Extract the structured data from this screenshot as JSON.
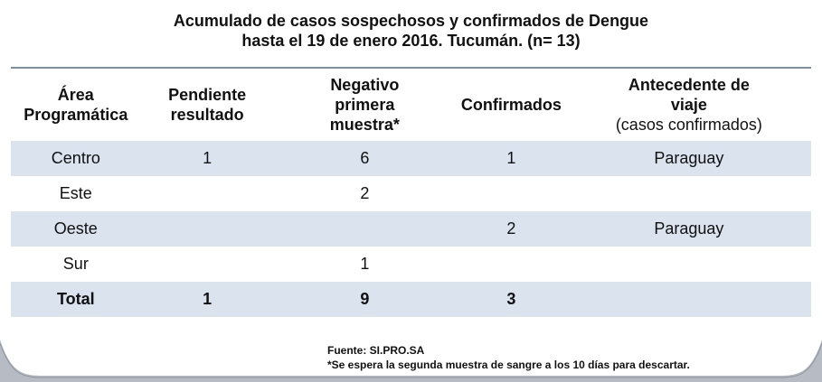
{
  "title": {
    "line1": "Acumulado de casos sospechosos y confirmados de Dengue",
    "line2": "hasta el 19 de enero 2016. Tucumán. (n= 13)"
  },
  "table": {
    "headers": {
      "area": [
        "Área",
        "Programática"
      ],
      "pendiente": [
        "Pendiente",
        "resultado"
      ],
      "negativo": [
        "Negativo",
        "primera",
        "muestra*"
      ],
      "confirmados": "Confirmados",
      "antecedente": [
        "Antecedente de",
        "viaje"
      ],
      "antecedente_sub": "(casos confirmados)"
    },
    "rows": [
      {
        "area": "Centro",
        "pendiente": "1",
        "negativo": "6",
        "confirmados": "1",
        "antecedente": "Paraguay"
      },
      {
        "area": "Este",
        "pendiente": "",
        "negativo": "2",
        "confirmados": "",
        "antecedente": ""
      },
      {
        "area": "Oeste",
        "pendiente": "",
        "negativo": "",
        "confirmados": "2",
        "antecedente": "Paraguay"
      },
      {
        "area": "Sur",
        "pendiente": "",
        "negativo": "1",
        "confirmados": "",
        "antecedente": ""
      }
    ],
    "total": {
      "area": "Total",
      "pendiente": "1",
      "negativo": "9",
      "confirmados": "3",
      "antecedente": ""
    }
  },
  "notes": {
    "fuente": "Fuente: SI.PRO.SA",
    "footnote": "*Se espera la segunda muestra de sangre a los 10 días para descartar."
  },
  "colors": {
    "row_shade": "#dbe3ee",
    "header_rule": "#7b8fa6",
    "frame": "#b7bcc4"
  }
}
